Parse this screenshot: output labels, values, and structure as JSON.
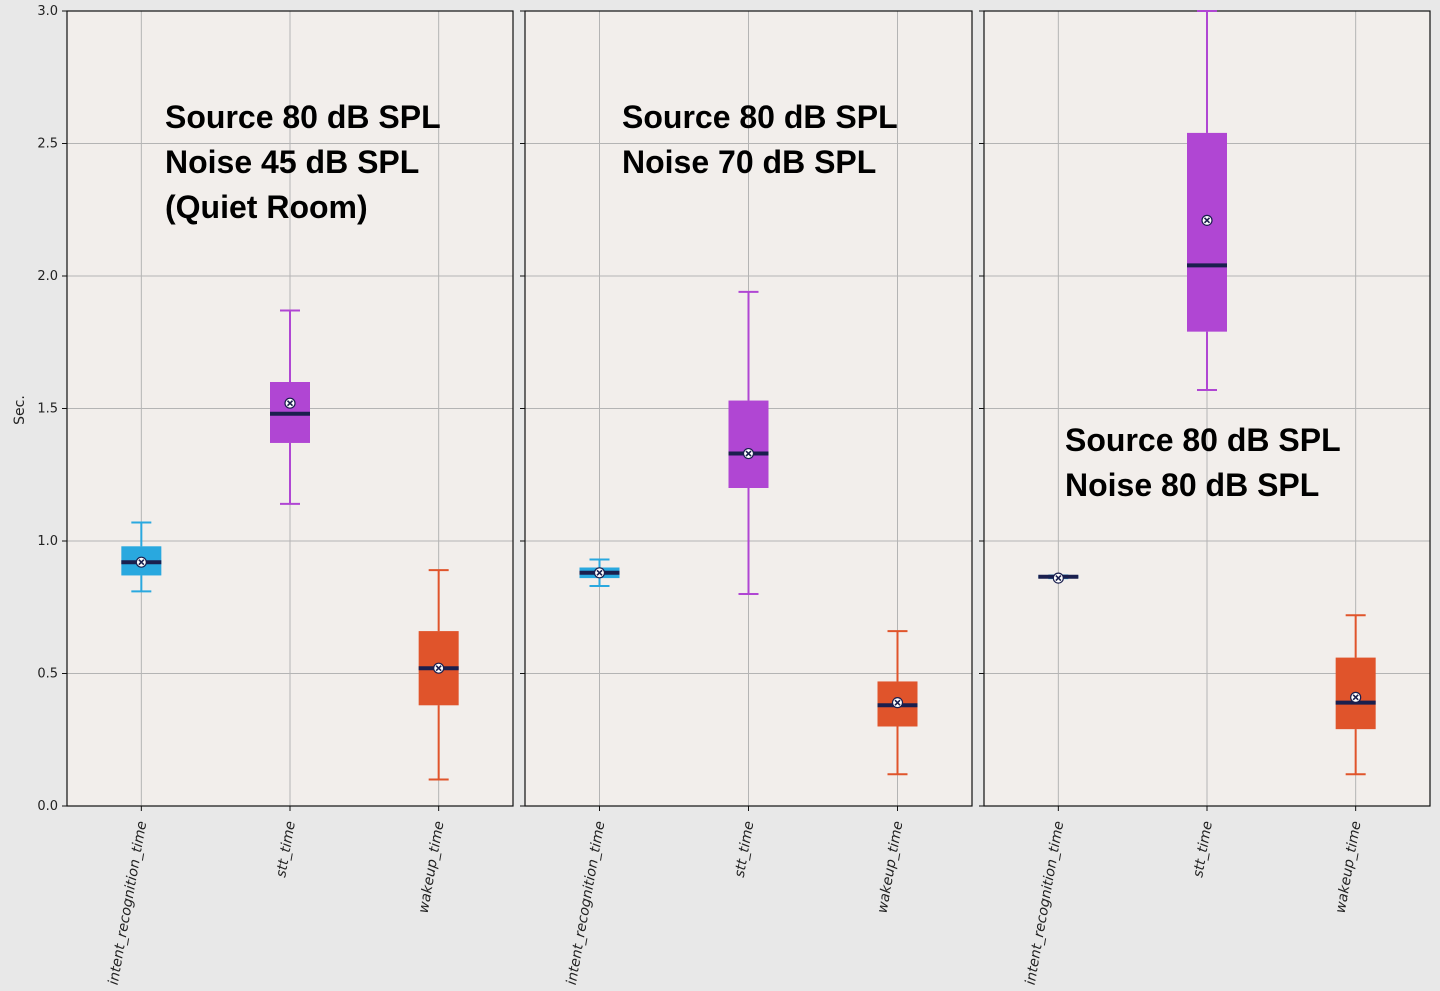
{
  "chart_data": {
    "type": "box",
    "ylabel": "Sec.",
    "ylim": [
      0,
      3
    ],
    "yticks": [
      0.0,
      0.5,
      1.0,
      1.5,
      2.0,
      2.5,
      3.0
    ],
    "ytick_labels": [
      "0.0",
      "0.5",
      "1.0",
      "1.5",
      "2.0",
      "2.5",
      "3.0"
    ],
    "grid": true,
    "categories": [
      "intent_recognition_time",
      "stt_time",
      "wakeup_time"
    ],
    "colors": {
      "intent_recognition_time": "#29a8df",
      "stt_time": "#b046d3",
      "wakeup_time": "#e0542b",
      "median": "#1a1f4e",
      "background": "#f2eeeb"
    },
    "panels": [
      {
        "annotation": [
          "Source 80 dB SPL",
          "Noise 45 dB SPL",
          "(Quiet Room)"
        ],
        "boxes": [
          {
            "category": "intent_recognition_time",
            "whisker_low": 0.81,
            "q1": 0.87,
            "median": 0.92,
            "q3": 0.98,
            "whisker_high": 1.07,
            "mean": 0.92
          },
          {
            "category": "stt_time",
            "whisker_low": 1.14,
            "q1": 1.37,
            "median": 1.48,
            "q3": 1.6,
            "whisker_high": 1.87,
            "mean": 1.52
          },
          {
            "category": "wakeup_time",
            "whisker_low": 0.1,
            "q1": 0.38,
            "median": 0.52,
            "q3": 0.66,
            "whisker_high": 0.89,
            "mean": 0.52
          }
        ]
      },
      {
        "annotation": [
          "Source 80 dB SPL",
          "Noise 70 dB SPL"
        ],
        "boxes": [
          {
            "category": "intent_recognition_time",
            "whisker_low": 0.83,
            "q1": 0.86,
            "median": 0.88,
            "q3": 0.9,
            "whisker_high": 0.93,
            "mean": 0.88
          },
          {
            "category": "stt_time",
            "whisker_low": 0.8,
            "q1": 1.2,
            "median": 1.33,
            "q3": 1.53,
            "whisker_high": 1.94,
            "mean": 1.33
          },
          {
            "category": "wakeup_time",
            "whisker_low": 0.12,
            "q1": 0.3,
            "median": 0.38,
            "q3": 0.47,
            "whisker_high": 0.66,
            "mean": 0.39
          }
        ]
      },
      {
        "annotation": [
          "Source 80 dB SPL",
          "Noise 80 dB SPL"
        ],
        "boxes": [
          {
            "category": "intent_recognition_time",
            "whisker_low": 0.86,
            "q1": 0.86,
            "median": 0.865,
            "q3": 0.87,
            "whisker_high": 0.87,
            "mean": 0.86
          },
          {
            "category": "stt_time",
            "whisker_low": 1.57,
            "q1": 1.79,
            "median": 2.04,
            "q3": 2.54,
            "whisker_high": 3.0,
            "mean": 2.21
          },
          {
            "category": "wakeup_time",
            "whisker_low": 0.12,
            "q1": 0.29,
            "median": 0.39,
            "q3": 0.56,
            "whisker_high": 0.72,
            "mean": 0.41
          }
        ]
      }
    ]
  }
}
